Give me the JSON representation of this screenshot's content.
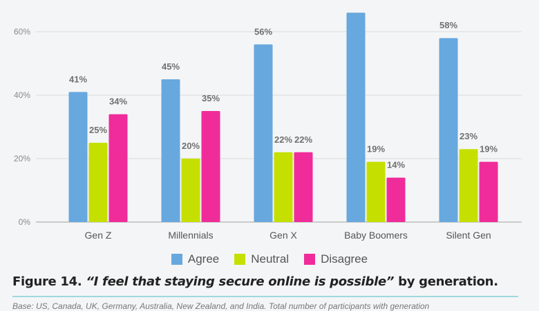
{
  "chart_data": {
    "type": "bar",
    "categories": [
      "Gen Z",
      "Millennials",
      "Gen X",
      "Baby Boomers",
      "Silent Gen"
    ],
    "series": [
      {
        "name": "Agree",
        "color": "#67a8de",
        "values": [
          41,
          45,
          56,
          66,
          58
        ],
        "labels": [
          "41%",
          "45%",
          "56%",
          null,
          "58%"
        ]
      },
      {
        "name": "Neutral",
        "color": "#c5e000",
        "values": [
          25,
          20,
          22,
          19,
          23
        ],
        "labels": [
          "25%",
          "20%",
          "22%",
          "19%",
          "23%"
        ]
      },
      {
        "name": "Disagree",
        "color": "#f02c9a",
        "values": [
          34,
          35,
          22,
          14,
          19
        ],
        "labels": [
          "34%",
          "35%",
          "22%",
          "14%",
          "19%"
        ]
      }
    ],
    "yticks": [
      "0%",
      "20%",
      "40%",
      "60%"
    ],
    "ylim": [
      0,
      66
    ],
    "grid": true,
    "legend": "bottom"
  },
  "caption": {
    "prefix": "Figure 14. ",
    "quote": "“I feel that staying secure online is possible”",
    "suffix": " by generation."
  },
  "base_note": "Base: US, Canada, UK, Germany, Australia, New Zealand, and India. Total number of participants with generation"
}
